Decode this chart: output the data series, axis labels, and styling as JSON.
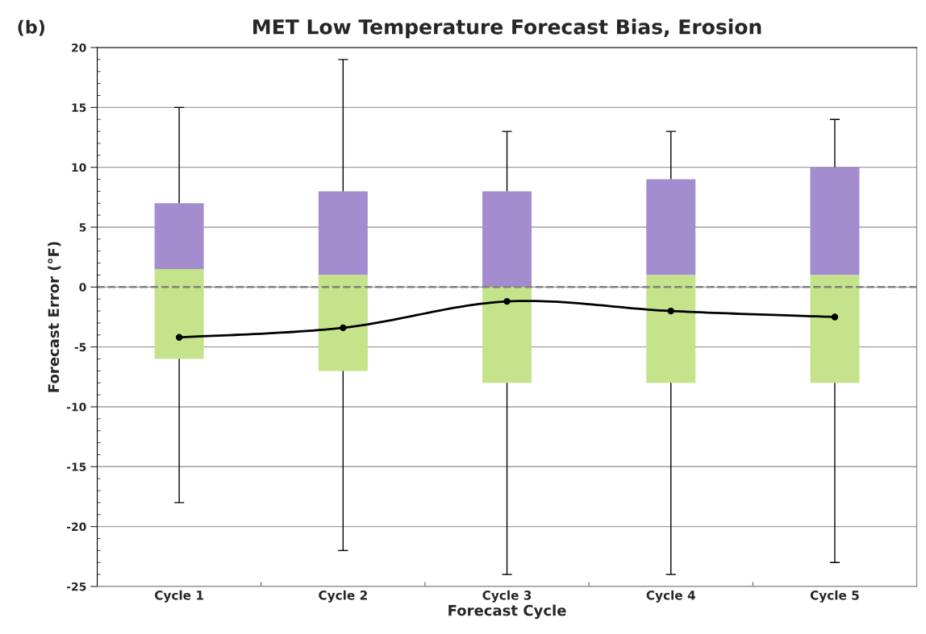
{
  "chart_data": {
    "type": "box",
    "title": "MET Low Temperature Forecast Bias, Erosion",
    "xlabel": "Forecast Cycle",
    "ylabel": "Forecast Error (°F)",
    "annotations": [
      "(b)"
    ],
    "categories": [
      "Cycle 1",
      "Cycle 2",
      "Cycle 3",
      "Cycle 4",
      "Cycle 5"
    ],
    "series": [
      {
        "type": "box",
        "color": "#c4e38a",
        "boxes": [
          {
            "low": -18,
            "q1": -6,
            "median": 1.5,
            "q3": 7,
            "high": 15
          },
          {
            "low": -22,
            "q1": -7,
            "median": 1,
            "q3": 8,
            "high": 19
          },
          {
            "low": -24,
            "q1": -8,
            "median": 0,
            "q3": 8,
            "high": 13
          },
          {
            "low": -24,
            "q1": -8,
            "median": 1,
            "q3": 9,
            "high": 13
          },
          {
            "low": -23,
            "q1": -8,
            "median": 1,
            "q3": 10,
            "high": 14
          }
        ]
      },
      {
        "type": "line",
        "color": "#000000",
        "values": [
          -4.2,
          -3.4,
          -1.2,
          -2.0,
          -2.5
        ]
      }
    ],
    "colors": [
      "#a48dcf",
      "#a48dcf",
      "#a48dcf",
      "#a48dcf",
      "#a48dcf"
    ],
    "marker": "circle",
    "ylim": [
      -25,
      20
    ],
    "yticks": [
      -25,
      -20,
      -15,
      -10,
      -5,
      0,
      5,
      10,
      15,
      20
    ],
    "grid": "y",
    "ref_lines": [
      {
        "axis": "y",
        "value": 0,
        "color": "#808080",
        "line_style": "dashed"
      }
    ]
  }
}
